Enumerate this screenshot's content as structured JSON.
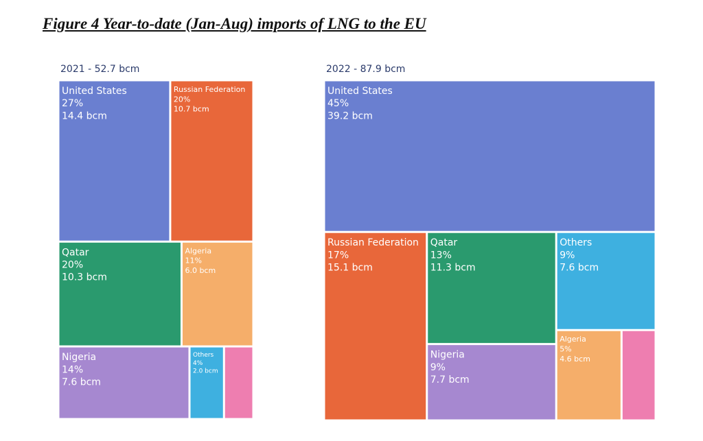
{
  "title": "Figure 4 Year-to-date (Jan-Aug) imports of LNG to the EU",
  "chart_data": [
    {
      "type": "treemap",
      "title": "2021 - 52.7 bcm",
      "categories": [
        "United States",
        "Russian Federation",
        "Qatar",
        "Algeria",
        "Nigeria",
        "Others",
        null
      ],
      "values": [
        14.4,
        10.7,
        10.3,
        6.0,
        7.6,
        2.0,
        1.7
      ],
      "value_labels": [
        "14.4 bcm",
        "10.7 bcm",
        "10.3 bcm",
        "6.0 bcm",
        "7.6 bcm",
        "2.0 bcm",
        null
      ],
      "shares": [
        27,
        20,
        20,
        11,
        14,
        4,
        3
      ],
      "share_labels": [
        "27%",
        "20%",
        "20%",
        "11%",
        "14%",
        "4%",
        null
      ],
      "colors": [
        "#6a7fd0",
        "#e8673a",
        "#2a9a6e",
        "#f5ae6a",
        "#a688d0",
        "#3eb0e0",
        "#ee7eb0"
      ]
    },
    {
      "type": "treemap",
      "title": "2022 - 87.9 bcm",
      "categories": [
        "United States",
        "Russian Federation",
        "Qatar",
        "Others",
        "Nigeria",
        "Algeria",
        null
      ],
      "values": [
        39.2,
        15.1,
        11.3,
        7.6,
        7.7,
        4.6,
        2.4
      ],
      "value_labels": [
        "39.2 bcm",
        "15.1 bcm",
        "11.3 bcm",
        "7.6 bcm",
        "7.7 bcm",
        "4.6 bcm",
        null
      ],
      "shares": [
        45,
        17,
        13,
        9,
        9,
        5,
        3
      ],
      "share_labels": [
        "45%",
        "17%",
        "13%",
        "9%",
        "9%",
        "5%",
        null
      ],
      "colors": [
        "#6a7fd0",
        "#e8673a",
        "#2a9a6e",
        "#3eb0e0",
        "#a688d0",
        "#f5ae6a",
        "#ee7eb0"
      ]
    }
  ]
}
